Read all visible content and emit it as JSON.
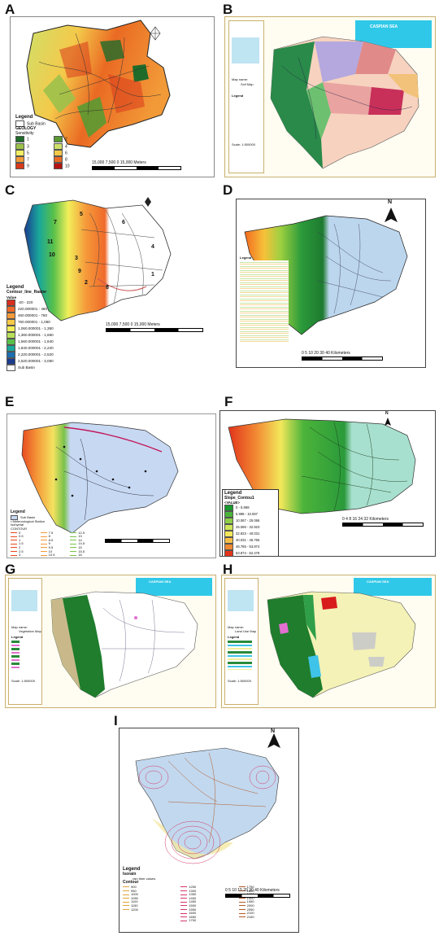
{
  "panels": {
    "A": {
      "label": "A",
      "legend_title": "Legend",
      "sub_basin": "Sub Basin",
      "layer": "GEOLOGY",
      "sens": "Sensitivity",
      "classes": [
        {
          "v": "1",
          "c": "#1f6b2a"
        },
        {
          "v": "2",
          "c": "#5a9a32"
        },
        {
          "v": "3",
          "c": "#9cc14a"
        },
        {
          "v": "4",
          "c": "#cfe06a"
        },
        {
          "v": "5",
          "c": "#f2ef62"
        },
        {
          "v": "6",
          "c": "#f4c94a"
        },
        {
          "v": "7",
          "c": "#f29a38"
        },
        {
          "v": "8",
          "c": "#ea6a23"
        },
        {
          "v": "9",
          "c": "#d93a1c"
        },
        {
          "v": "10",
          "c": "#b51414"
        }
      ],
      "scale": "15,000  7,500    0          15,000 Meters"
    },
    "B": {
      "label": "B",
      "sea": "CASPIAN SEA",
      "map_name": "Map name:",
      "map_title": "Soil Map",
      "legend": "Legend",
      "scale": "Scale: 1:500000"
    },
    "C": {
      "label": "C",
      "legend_title": "Legend",
      "layer": "Contour_line_Raster",
      "value": "Value",
      "classes": [
        {
          "v": "-20 - 220",
          "c": "#d7301f"
        },
        {
          "v": "220.000001 - 460",
          "c": "#ef6a2a"
        },
        {
          "v": "460.000001 - 760",
          "c": "#f59a3a"
        },
        {
          "v": "760.000001 - 1,060",
          "c": "#f7c948"
        },
        {
          "v": "1,060.000001 - 1,360",
          "c": "#f2ef5a"
        },
        {
          "v": "1,360.000001 - 1,660",
          "c": "#b9e05a"
        },
        {
          "v": "1,660.000001 - 1,840",
          "c": "#58c04a"
        },
        {
          "v": "1,840.000001 - 2,220",
          "c": "#19a79a"
        },
        {
          "v": "2,220.000001 - 2,520",
          "c": "#1a6fb0"
        },
        {
          "v": "2,520.000001 - 3,050",
          "c": "#1b3b8f"
        },
        {
          "v": "Sub Basin",
          "c": "#ffffff"
        }
      ],
      "subs": [
        "5",
        "6",
        "4",
        "7",
        "11",
        "10",
        "3",
        "9",
        "2",
        "1",
        "8"
      ],
      "scale": "15,000  7,500    0          15,000 Meters"
    },
    "D": {
      "label": "D",
      "north": "N",
      "legend": "Legend",
      "scale": "0  5 10    20    30    40",
      "unit": "Kilometers"
    },
    "E": {
      "label": "E",
      "legend": "Legend",
      "sub_basin": "Sub Basin",
      "station": "Meteorological Station",
      "isohyetal": "Isohyetal",
      "contour": "CONTOUR",
      "c1": [
        "0",
        "0.5",
        "1",
        "1.5",
        "2",
        "2.5",
        "3"
      ],
      "c2": [
        "7.5",
        "8",
        "8.5",
        "9",
        "9.5",
        "10",
        "10.5"
      ],
      "c3": [
        "12.5",
        "13",
        "14",
        "14.5",
        "15",
        "15.5",
        "16"
      ]
    },
    "F": {
      "label": "F",
      "north": "N",
      "legend": "Legend",
      "layer": "Slope_Contou1",
      "value": "<VALUE>",
      "classes": [
        {
          "v": "0 - 5.998",
          "c": "#1a9a2e"
        },
        {
          "v": "5.998 - 10.067",
          "c": "#4cb43a"
        },
        {
          "v": "10.067 - 25.066",
          "c": "#8fcf48"
        },
        {
          "v": "25.066 - 32.923",
          "c": "#cde65a"
        },
        {
          "v": "32.923 - 40.031",
          "c": "#f2e85a"
        },
        {
          "v": "40.031 - 46.765",
          "c": "#f7bf45"
        },
        {
          "v": "46.765 - 53.874",
          "c": "#f28a33"
        },
        {
          "v": "53.874 - 62.478",
          "c": "#e2341c"
        },
        {
          "v": "62.478 - 95.402",
          "c": "#b8141c"
        },
        {
          "v": "Sub Basin",
          "c": "#a8e0cf"
        }
      ],
      "scale": "0  4  8    16    24    32",
      "unit": "Kilometers"
    },
    "G": {
      "label": "G",
      "sea": "CASPIAN SEA",
      "map_name": "Map name:",
      "map_title": "Vegetation Map",
      "legend": "Legend",
      "scale": "Scale: 1:500000"
    },
    "H": {
      "label": "H",
      "sea": "CASPIAN SEA",
      "map_name": "Map name:",
      "map_title": "Land Use Map",
      "legend": "Legend",
      "scale": "Scale: 1:500000"
    },
    "I": {
      "label": "I",
      "north": "N",
      "legend": "Legend",
      "layer": "Isorain",
      "rain": "rain ither values",
      "contour": "Contour",
      "c1": [
        "900",
        "950",
        "1000",
        "1050",
        "1100",
        "1150",
        "1200"
      ],
      "c2": [
        "1250",
        "1300",
        "1350",
        "1400",
        "1450",
        "1500",
        "1550",
        "1600",
        "1650",
        "1700"
      ],
      "c3": [
        "1750",
        "1800",
        "1850",
        "1900",
        "1950",
        "2000",
        "2050",
        "2100",
        "2150"
      ],
      "sub_basin": "Sub Basin",
      "scale": "0  5 10 15   20   30   40",
      "unit": "Kilometers"
    }
  }
}
